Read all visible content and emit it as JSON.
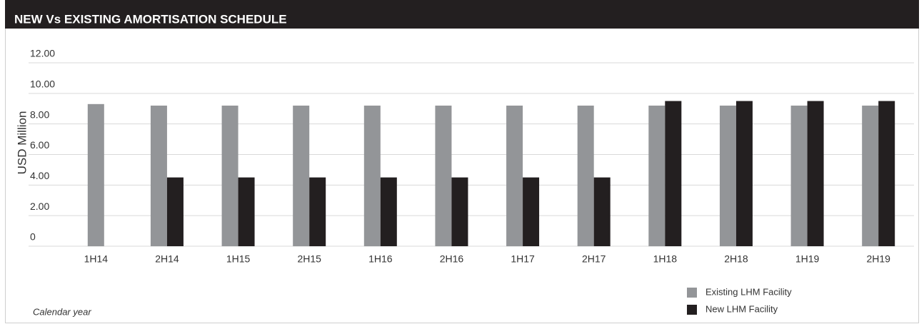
{
  "chart_data": {
    "type": "bar",
    "title": "NEW Vs EXISTING AMORTISATION SCHEDULE",
    "y_label": "USD Million",
    "x_label": "Calendar year",
    "categories": [
      "1H14",
      "2H14",
      "1H15",
      "2H15",
      "1H16",
      "2H16",
      "1H17",
      "2H17",
      "1H18",
      "2H18",
      "1H19",
      "2H19"
    ],
    "series": [
      {
        "name": "Existing LHM Facility",
        "color": "#939598",
        "values": [
          9.3,
          9.2,
          9.2,
          9.2,
          9.2,
          9.2,
          9.2,
          9.2,
          9.2,
          9.2,
          9.2,
          9.2
        ]
      },
      {
        "name": "New LHM Facility",
        "color": "#231f20",
        "values": [
          null,
          4.5,
          4.5,
          4.5,
          4.5,
          4.5,
          4.5,
          4.5,
          9.5,
          9.5,
          9.5,
          9.5
        ]
      }
    ],
    "ylim": [
      0,
      12
    ],
    "yticks": [
      0,
      {
        "value": 2,
        "label": "2.00"
      },
      {
        "value": 4,
        "label": "4.00"
      },
      {
        "value": 6,
        "label": "6.00"
      },
      {
        "value": 8,
        "label": "8.00"
      },
      {
        "value": 10,
        "label": "10.00"
      },
      {
        "value": 12,
        "label": "12.00"
      }
    ],
    "grid": true,
    "legend": "bottom-right"
  }
}
